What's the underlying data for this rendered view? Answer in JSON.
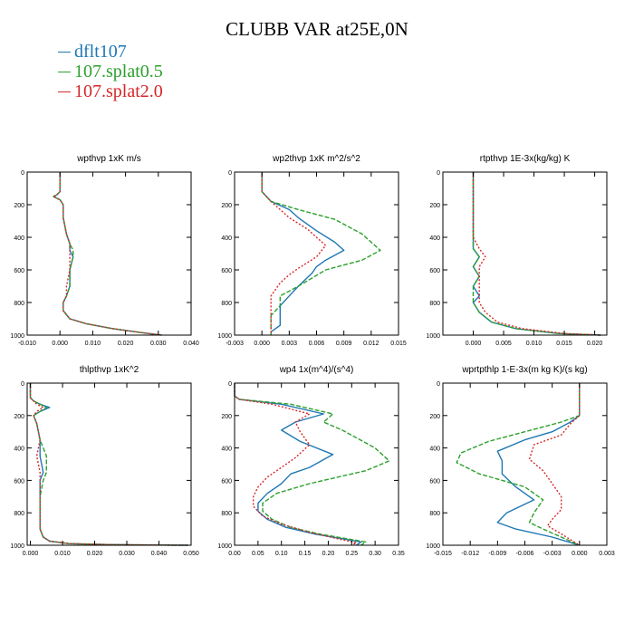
{
  "title": "CLUBB VAR at25E,0N",
  "legend": [
    {
      "label": "dflt107",
      "color": "#1f77b4"
    },
    {
      "label": "107.splat0.5",
      "color": "#2ca02c"
    },
    {
      "label": "107.splat2.0",
      "color": "#d62728"
    }
  ],
  "chart_data": [
    {
      "type": "line",
      "title": "wpthvp  1xK m/s",
      "xlim": [
        -0.01,
        0.04
      ],
      "ylim": [
        0,
        1000
      ],
      "y_inverted": true,
      "xticks": [
        -0.01,
        0.0,
        0.01,
        0.02,
        0.03,
        0.04
      ],
      "xtick_labels": [
        "-0.010",
        "0.000",
        "0.010",
        "0.020",
        "0.030",
        "0.040"
      ],
      "yticks": [
        0,
        200,
        400,
        600,
        800,
        1000
      ],
      "ytick_labels": [
        "0",
        "200",
        "400",
        "600",
        "800",
        "1000"
      ],
      "series": [
        {
          "name": "dflt107",
          "color": "#1f77b4",
          "dash": "solid",
          "x": [
            0.0,
            0.0,
            0.0,
            -0.001,
            -0.002,
            0.0,
            0.001,
            0.001,
            0.002,
            0.003,
            0.003,
            0.004,
            0.003,
            0.003,
            0.002,
            0.001,
            0.001,
            0.003,
            0.008,
            0.016,
            0.025,
            0.031
          ],
          "y": [
            0,
            80,
            120,
            140,
            150,
            170,
            200,
            280,
            380,
            440,
            480,
            520,
            600,
            700,
            760,
            800,
            850,
            900,
            930,
            960,
            985,
            1000
          ]
        },
        {
          "name": "107.splat0.5",
          "color": "#2ca02c",
          "dash": "dashed",
          "x": [
            0.0,
            0.0,
            0.0,
            -0.001,
            -0.002,
            0.0,
            0.001,
            0.001,
            0.002,
            0.003,
            0.004,
            0.004,
            0.003,
            0.003,
            0.002,
            0.001,
            0.001,
            0.003,
            0.008,
            0.016,
            0.025,
            0.031
          ],
          "y": [
            0,
            80,
            120,
            140,
            150,
            170,
            200,
            280,
            380,
            440,
            480,
            520,
            600,
            700,
            760,
            800,
            850,
            900,
            930,
            960,
            985,
            1000
          ]
        },
        {
          "name": "107.splat2.0",
          "color": "#d62728",
          "dash": "dotted",
          "x": [
            0.0,
            0.0,
            0.0,
            -0.001,
            -0.002,
            0.0,
            0.001,
            0.001,
            0.002,
            0.003,
            0.003,
            0.003,
            0.003,
            0.002,
            0.002,
            0.001,
            0.001,
            0.003,
            0.008,
            0.016,
            0.025,
            0.031
          ],
          "y": [
            0,
            80,
            120,
            140,
            150,
            170,
            200,
            280,
            380,
            440,
            480,
            520,
            600,
            700,
            760,
            800,
            850,
            900,
            930,
            960,
            985,
            1000
          ]
        }
      ]
    },
    {
      "type": "line",
      "title": "wp2thvp  1xK m^2/s^2",
      "xlim": [
        -0.003,
        0.015
      ],
      "ylim": [
        0,
        1000
      ],
      "y_inverted": true,
      "xticks": [
        -0.003,
        0.0,
        0.003,
        0.006,
        0.009,
        0.012,
        0.015
      ],
      "xtick_labels": [
        "-0.003",
        "0.000",
        "0.003",
        "0.006",
        "0.009",
        "0.012",
        "0.015"
      ],
      "yticks": [
        0,
        200,
        400,
        600,
        800,
        1000
      ],
      "ytick_labels": [
        "0",
        "200",
        "400",
        "600",
        "800",
        "1000"
      ],
      "series": [
        {
          "name": "dflt107",
          "color": "#1f77b4",
          "dash": "solid",
          "x": [
            0.0,
            0.0,
            0.0,
            0.001,
            0.003,
            0.004,
            0.006,
            0.008,
            0.009,
            0.007,
            0.006,
            0.0055,
            0.004,
            0.003,
            0.002,
            0.002,
            0.002,
            0.001,
            0.001
          ],
          "y": [
            0,
            80,
            120,
            180,
            230,
            280,
            360,
            430,
            480,
            540,
            580,
            620,
            700,
            760,
            820,
            880,
            940,
            980,
            1000
          ]
        },
        {
          "name": "107.splat0.5",
          "color": "#2ca02c",
          "dash": "dashed",
          "x": [
            0.0,
            0.0,
            0.0,
            0.001,
            0.004,
            0.006,
            0.008,
            0.011,
            0.013,
            0.011,
            0.009,
            0.007,
            0.004,
            0.002,
            0.002,
            0.001,
            0.001,
            0.001
          ],
          "y": [
            0,
            80,
            120,
            180,
            230,
            260,
            290,
            380,
            480,
            540,
            570,
            600,
            700,
            760,
            820,
            880,
            940,
            1000
          ]
        },
        {
          "name": "107.splat2.0",
          "color": "#d62728",
          "dash": "dotted",
          "x": [
            0.0,
            0.0,
            0.0,
            0.001,
            0.002,
            0.003,
            0.005,
            0.007,
            0.006,
            0.004,
            0.003,
            0.002,
            0.001,
            0.001,
            0.001,
            0.001
          ],
          "y": [
            0,
            80,
            120,
            180,
            230,
            280,
            350,
            450,
            520,
            590,
            630,
            680,
            760,
            840,
            920,
            1000
          ]
        }
      ]
    },
    {
      "type": "line",
      "title": "rtpthvp  1E-3x(kg/kg) K",
      "xlim": [
        -0.005,
        0.022
      ],
      "ylim": [
        0,
        1000
      ],
      "y_inverted": true,
      "xticks": [
        0.0,
        0.005,
        0.01,
        0.015,
        0.02
      ],
      "xtick_labels": [
        "0.000",
        "0.005",
        "0.010",
        "0.015",
        "0.020"
      ],
      "yticks": [
        0,
        200,
        400,
        600,
        800,
        1000
      ],
      "ytick_labels": [
        "0",
        "200",
        "400",
        "600",
        "800",
        "1000"
      ],
      "series": [
        {
          "name": "dflt107",
          "color": "#1f77b4",
          "dash": "solid",
          "x": [
            0.0,
            0.0,
            0.0,
            0.0,
            0.0,
            0.001,
            0.0,
            0.001,
            0.0,
            0.001,
            0.0,
            0.001,
            0.003,
            0.007,
            0.014,
            0.021
          ],
          "y": [
            0,
            200,
            300,
            400,
            470,
            520,
            580,
            640,
            700,
            760,
            800,
            860,
            920,
            960,
            990,
            1000
          ]
        },
        {
          "name": "107.splat0.5",
          "color": "#2ca02c",
          "dash": "dashed",
          "x": [
            0.0,
            0.0,
            0.0,
            0.0,
            0.0,
            0.001,
            0.0,
            0.001,
            0.0,
            0.0,
            0.0,
            0.001,
            0.003,
            0.007,
            0.014,
            0.021
          ],
          "y": [
            0,
            200,
            300,
            400,
            470,
            520,
            580,
            640,
            700,
            760,
            800,
            860,
            920,
            960,
            990,
            1000
          ]
        },
        {
          "name": "107.splat2.0",
          "color": "#d62728",
          "dash": "dotted",
          "x": [
            0.0,
            0.0,
            0.0,
            0.0,
            0.001,
            0.002,
            0.001,
            0.001,
            0.001,
            0.001,
            0.001,
            0.002,
            0.004,
            0.008,
            0.015,
            0.021
          ],
          "y": [
            0,
            200,
            300,
            400,
            470,
            520,
            580,
            640,
            700,
            760,
            800,
            860,
            920,
            960,
            990,
            1000
          ]
        }
      ]
    },
    {
      "type": "line",
      "title": "thlpthvp  1xK^2",
      "xlim": [
        -0.001,
        0.05
      ],
      "ylim": [
        0,
        1000
      ],
      "y_inverted": true,
      "xticks": [
        0.0,
        0.01,
        0.02,
        0.03,
        0.04,
        0.05
      ],
      "xtick_labels": [
        "0.000",
        "0.010",
        "0.020",
        "0.030",
        "0.040",
        "0.050"
      ],
      "yticks": [
        0,
        200,
        400,
        600,
        800,
        1000
      ],
      "ytick_labels": [
        "0",
        "200",
        "400",
        "600",
        "800",
        "1000"
      ],
      "series": [
        {
          "name": "dflt107",
          "color": "#1f77b4",
          "dash": "solid",
          "x": [
            0.0,
            0.0,
            0.001,
            0.003,
            0.006,
            0.003,
            0.001,
            0.002,
            0.003,
            0.003,
            0.004,
            0.003,
            0.003,
            0.003,
            0.003,
            0.004,
            0.006,
            0.012,
            0.025,
            0.04,
            0.049
          ],
          "y": [
            0,
            90,
            110,
            130,
            150,
            175,
            200,
            250,
            350,
            450,
            550,
            600,
            700,
            800,
            900,
            950,
            975,
            990,
            996,
            999,
            1000
          ]
        },
        {
          "name": "107.splat0.5",
          "color": "#2ca02c",
          "dash": "dashed",
          "x": [
            0.0,
            0.0,
            0.001,
            0.003,
            0.005,
            0.003,
            0.001,
            0.002,
            0.003,
            0.005,
            0.005,
            0.004,
            0.003,
            0.003,
            0.003,
            0.004,
            0.006,
            0.012,
            0.025,
            0.04,
            0.049
          ],
          "y": [
            0,
            90,
            110,
            130,
            150,
            175,
            200,
            250,
            350,
            450,
            550,
            600,
            700,
            800,
            900,
            950,
            975,
            990,
            996,
            999,
            1000
          ]
        },
        {
          "name": "107.splat2.0",
          "color": "#d62728",
          "dash": "dotted",
          "x": [
            0.0,
            0.0,
            0.001,
            0.002,
            0.004,
            0.002,
            0.001,
            0.002,
            0.003,
            0.002,
            0.003,
            0.003,
            0.003,
            0.003,
            0.003,
            0.004,
            0.006,
            0.012,
            0.025,
            0.04,
            0.049
          ],
          "y": [
            0,
            90,
            110,
            130,
            150,
            175,
            200,
            250,
            350,
            450,
            550,
            600,
            700,
            800,
            900,
            950,
            975,
            990,
            996,
            999,
            1000
          ]
        }
      ]
    },
    {
      "type": "line",
      "title": "wp4  1x(m^4)/(s^4)",
      "xlim": [
        0.0,
        0.35
      ],
      "ylim": [
        0,
        1000
      ],
      "y_inverted": true,
      "xticks": [
        0.0,
        0.05,
        0.1,
        0.15,
        0.2,
        0.25,
        0.3,
        0.35
      ],
      "xtick_labels": [
        "0.00",
        "0.05",
        "0.10",
        "0.15",
        "0.20",
        "0.25",
        "0.30",
        "0.35"
      ],
      "yticks": [
        0,
        200,
        400,
        600,
        800,
        1000
      ],
      "ytick_labels": [
        "0",
        "200",
        "400",
        "600",
        "800",
        "1000"
      ],
      "series": [
        {
          "name": "dflt107",
          "color": "#1f77b4",
          "dash": "solid",
          "x": [
            0.0,
            0.0,
            0.01,
            0.1,
            0.19,
            0.13,
            0.1,
            0.14,
            0.21,
            0.16,
            0.12,
            0.1,
            0.07,
            0.05,
            0.05,
            0.07,
            0.11,
            0.17,
            0.23,
            0.27,
            0.26
          ],
          "y": [
            0,
            80,
            100,
            130,
            190,
            240,
            290,
            360,
            440,
            520,
            560,
            620,
            680,
            740,
            790,
            840,
            890,
            930,
            960,
            980,
            1000
          ]
        },
        {
          "name": "107.splat0.5",
          "color": "#2ca02c",
          "dash": "dashed",
          "x": [
            0.0,
            0.0,
            0.01,
            0.12,
            0.21,
            0.19,
            0.23,
            0.3,
            0.33,
            0.28,
            0.22,
            0.16,
            0.09,
            0.06,
            0.06,
            0.08,
            0.12,
            0.18,
            0.24,
            0.28,
            0.27
          ],
          "y": [
            0,
            80,
            100,
            130,
            190,
            240,
            290,
            400,
            480,
            540,
            580,
            620,
            680,
            740,
            790,
            840,
            890,
            930,
            960,
            980,
            1000
          ]
        },
        {
          "name": "107.splat2.0",
          "color": "#d62728",
          "dash": "dotted",
          "x": [
            0.0,
            0.0,
            0.01,
            0.08,
            0.16,
            0.13,
            0.14,
            0.16,
            0.13,
            0.1,
            0.07,
            0.05,
            0.04,
            0.04,
            0.06,
            0.1,
            0.16,
            0.22,
            0.26,
            0.25
          ],
          "y": [
            0,
            80,
            100,
            130,
            190,
            240,
            300,
            380,
            460,
            520,
            580,
            640,
            700,
            760,
            820,
            870,
            920,
            960,
            985,
            1000
          ]
        }
      ]
    },
    {
      "type": "line",
      "title": "wprtpthlp  1-E-3x(m kg K)/(s kg)",
      "xlim": [
        -0.015,
        0.003
      ],
      "ylim": [
        0,
        1000
      ],
      "y_inverted": true,
      "xticks": [
        -0.015,
        -0.012,
        -0.009,
        -0.006,
        -0.003,
        0.0,
        0.003
      ],
      "xtick_labels": [
        "-0.015",
        "-0.012",
        "-0.009",
        "-0.006",
        "-0.003",
        "0.000",
        "0.003"
      ],
      "yticks": [
        0,
        200,
        400,
        600,
        800,
        1000
      ],
      "ytick_labels": [
        "0",
        "200",
        "400",
        "600",
        "800",
        "1000"
      ],
      "series": [
        {
          "name": "dflt107",
          "color": "#1f77b4",
          "dash": "solid",
          "x": [
            0.0,
            0.0,
            -0.001,
            -0.003,
            -0.006,
            -0.009,
            -0.0085,
            -0.0085,
            -0.007,
            -0.005,
            -0.008,
            -0.009,
            -0.007,
            -0.003,
            0.0
          ],
          "y": [
            0,
            200,
            240,
            300,
            350,
            420,
            480,
            560,
            640,
            720,
            800,
            860,
            900,
            950,
            1000
          ]
        },
        {
          "name": "107.splat0.5",
          "color": "#2ca02c",
          "dash": "dashed",
          "x": [
            0.0,
            0.0,
            -0.002,
            -0.006,
            -0.01,
            -0.013,
            -0.0135,
            -0.011,
            -0.006,
            -0.004,
            -0.005,
            -0.0055,
            -0.004,
            -0.002,
            0.0
          ],
          "y": [
            0,
            200,
            240,
            300,
            360,
            430,
            490,
            560,
            640,
            720,
            800,
            860,
            900,
            950,
            1000
          ]
        },
        {
          "name": "107.splat2.0",
          "color": "#d62728",
          "dash": "dotted",
          "x": [
            0.0,
            0.0,
            -0.001,
            -0.002,
            -0.005,
            -0.0055,
            -0.004,
            -0.003,
            -0.002,
            -0.002,
            -0.003,
            -0.0035,
            -0.002,
            0.0
          ],
          "y": [
            0,
            200,
            250,
            320,
            380,
            470,
            540,
            620,
            700,
            780,
            840,
            880,
            930,
            1000
          ]
        }
      ]
    }
  ]
}
